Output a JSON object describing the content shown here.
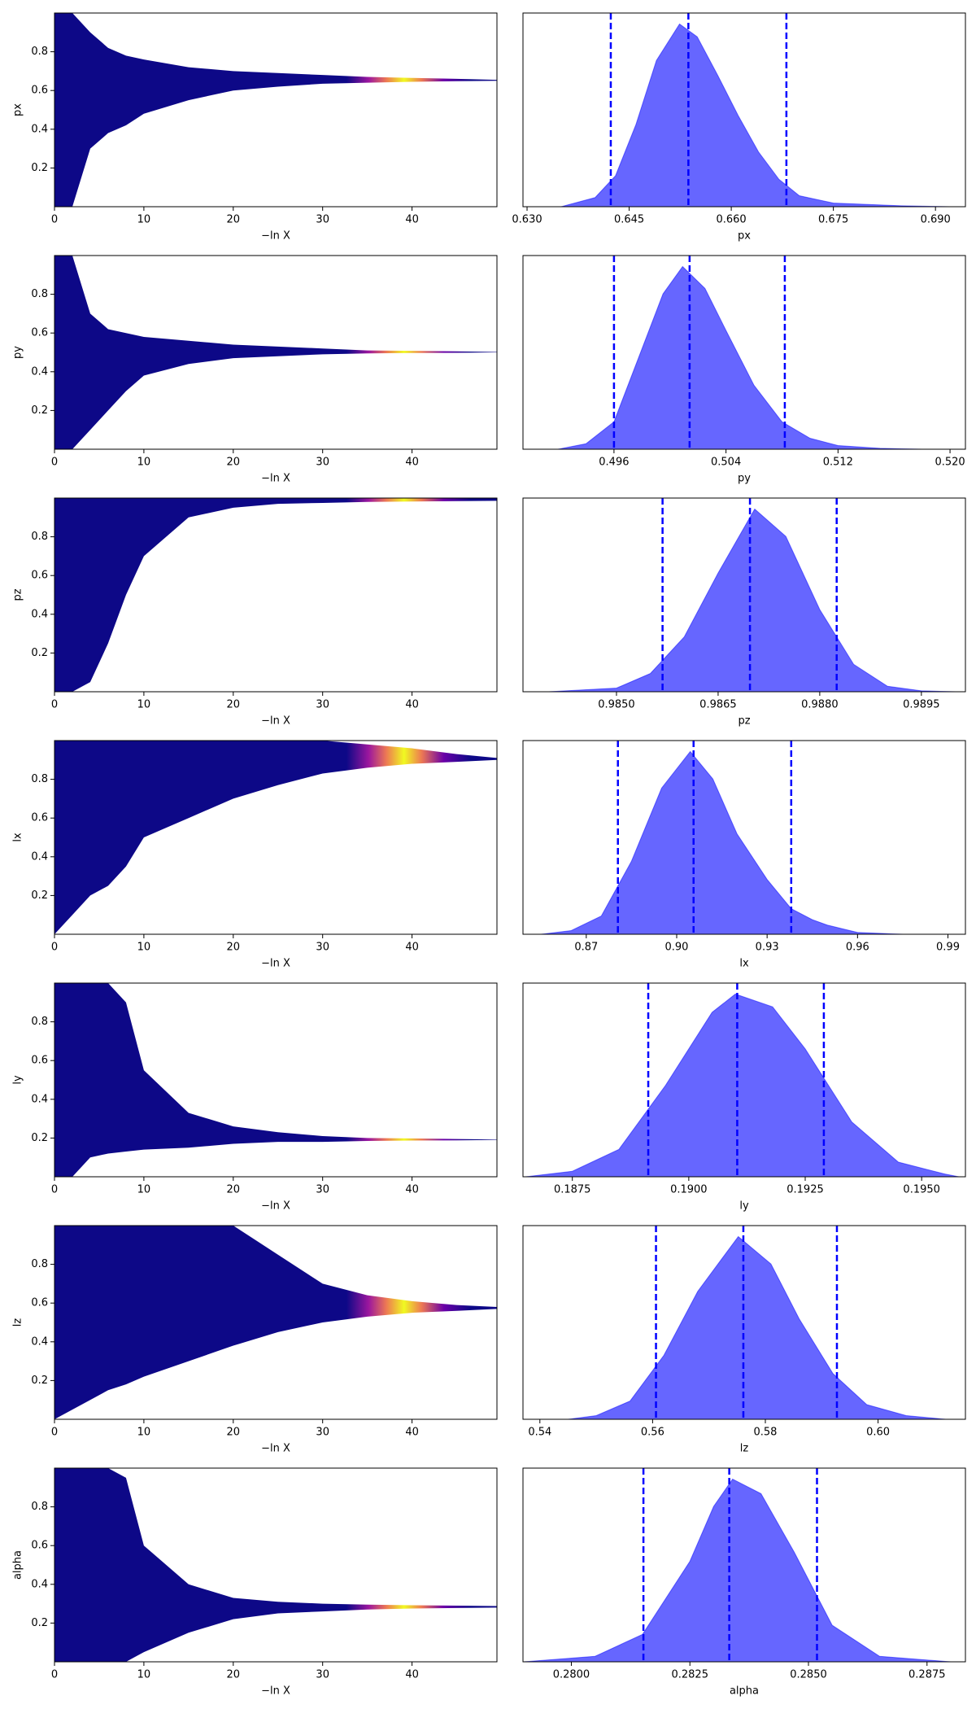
{
  "chart_data": [
    {
      "type": "band",
      "ylabel": "px",
      "xlabel": "−ln X",
      "color": "#0d0887",
      "x": [
        0,
        2,
        4,
        6,
        8,
        10,
        15,
        20,
        25,
        30,
        35,
        40,
        45,
        49.5
      ],
      "lower": [
        0,
        0,
        0.3,
        0.38,
        0.42,
        0.48,
        0.55,
        0.6,
        0.62,
        0.635,
        0.64,
        0.645,
        0.648,
        0.65
      ],
      "upper": [
        1,
        1,
        0.9,
        0.82,
        0.78,
        0.76,
        0.72,
        0.7,
        0.69,
        0.68,
        0.67,
        0.665,
        0.66,
        0.655
      ],
      "xlim": [
        0,
        49.5
      ],
      "ylim": [
        0,
        1
      ],
      "xticks": [
        0,
        10,
        20,
        30,
        40
      ],
      "yticks": [
        0.2,
        0.4,
        0.6,
        0.8
      ]
    },
    {
      "type": "area",
      "xlabel": "px",
      "color": "#6666ff",
      "line_color": "#0000ff",
      "x": [
        0.635,
        0.64,
        0.643,
        0.646,
        0.649,
        0.6524,
        0.655,
        0.658,
        0.661,
        0.664,
        0.667,
        0.67,
        0.675,
        0.685,
        0.692
      ],
      "values": [
        0,
        0.05,
        0.17,
        0.45,
        0.8,
        1,
        0.93,
        0.72,
        0.5,
        0.3,
        0.15,
        0.06,
        0.02,
        0.005,
        0
      ],
      "quantiles": [
        0.6423,
        0.6537,
        0.6681
      ],
      "xlim": [
        0.6294,
        0.6944
      ],
      "ylim": [
        0,
        1.06
      ],
      "xticks": [
        {
          "value": 0.63,
          "label": "0.630"
        },
        0.645,
        {
          "value": 0.66,
          "label": "0.660"
        },
        0.675,
        {
          "value": 0.69,
          "label": "0.690"
        }
      ]
    },
    {
      "type": "band",
      "ylabel": "py",
      "xlabel": "−ln X",
      "color": "#0d0887",
      "x": [
        0,
        2,
        4,
        6,
        8,
        10,
        15,
        20,
        25,
        30,
        35,
        40,
        45,
        49.5
      ],
      "lower": [
        0,
        0,
        0.1,
        0.2,
        0.3,
        0.38,
        0.44,
        0.47,
        0.48,
        0.49,
        0.495,
        0.497,
        0.498,
        0.5
      ],
      "upper": [
        1,
        1,
        0.7,
        0.62,
        0.6,
        0.58,
        0.56,
        0.54,
        0.53,
        0.52,
        0.51,
        0.508,
        0.505,
        0.502
      ],
      "xlim": [
        0,
        49.5
      ],
      "ylim": [
        0,
        1
      ],
      "xticks": [
        0,
        10,
        20,
        30,
        40
      ],
      "yticks": [
        0.2,
        0.4,
        0.6,
        0.8
      ]
    },
    {
      "type": "area",
      "xlabel": "py",
      "color": "#6666ff",
      "line_color": "#0000ff",
      "x": [
        0.492,
        0.494,
        0.496,
        0.498,
        0.4995,
        0.5009,
        0.5025,
        0.504,
        0.506,
        0.508,
        0.51,
        0.512,
        0.515,
        0.518
      ],
      "values": [
        0,
        0.03,
        0.15,
        0.55,
        0.85,
        1,
        0.88,
        0.65,
        0.35,
        0.15,
        0.06,
        0.02,
        0.005,
        0
      ],
      "quantiles": [
        0.496,
        0.5014,
        0.5082
      ],
      "xlim": [
        0.4895,
        0.5211
      ],
      "ylim": [
        0,
        1.06
      ],
      "xticks": [
        0.496,
        0.504,
        0.512,
        {
          "value": 0.52,
          "label": "0.520"
        }
      ]
    },
    {
      "type": "band",
      "ylabel": "pz",
      "xlabel": "−ln X",
      "color": "#0d0887",
      "x": [
        0,
        2,
        4,
        6,
        8,
        10,
        15,
        20,
        25,
        30,
        35,
        40,
        45,
        49.5
      ],
      "lower": [
        0,
        0,
        0.05,
        0.25,
        0.5,
        0.7,
        0.9,
        0.95,
        0.97,
        0.975,
        0.98,
        0.982,
        0.984,
        0.986
      ],
      "upper": [
        1,
        1,
        1,
        1,
        1,
        1,
        1,
        1,
        1,
        1,
        1,
        1,
        1,
        1
      ],
      "xlim": [
        0,
        49.5
      ],
      "ylim": [
        0,
        1
      ],
      "xticks": [
        0,
        10,
        20,
        30,
        40
      ],
      "yticks": [
        0.2,
        0.4,
        0.6,
        0.8
      ]
    },
    {
      "type": "area",
      "xlabel": "pz",
      "color": "#6666ff",
      "line_color": "#0000ff",
      "x": [
        0.984,
        0.985,
        0.9855,
        0.986,
        0.9865,
        0.98704,
        0.9875,
        0.988,
        0.9885,
        0.989,
        0.9895,
        0.99
      ],
      "values": [
        0,
        0.02,
        0.1,
        0.3,
        0.65,
        1,
        0.85,
        0.45,
        0.15,
        0.03,
        0.005,
        0
      ],
      "quantiles": [
        0.98568,
        0.98697,
        0.98825
      ],
      "xlim": [
        0.98362,
        0.99015
      ],
      "ylim": [
        0,
        1.06
      ],
      "xticks": [
        {
          "value": 0.985,
          "label": "0.9850"
        },
        0.9865,
        {
          "value": 0.988,
          "label": "0.9880"
        },
        0.9895
      ]
    },
    {
      "type": "band",
      "ylabel": "lx",
      "xlabel": "−ln X",
      "color": "#0d0887",
      "x": [
        0,
        2,
        4,
        6,
        8,
        10,
        15,
        20,
        25,
        30,
        35,
        40,
        45,
        49.5
      ],
      "lower": [
        0,
        0.1,
        0.2,
        0.25,
        0.35,
        0.5,
        0.6,
        0.7,
        0.77,
        0.83,
        0.86,
        0.88,
        0.89,
        0.9
      ],
      "upper": [
        1,
        1,
        1,
        1,
        1,
        1,
        1,
        1,
        1,
        1,
        0.98,
        0.96,
        0.93,
        0.91
      ],
      "xlim": [
        0,
        49.5
      ],
      "ylim": [
        0,
        1
      ],
      "xticks": [
        0,
        10,
        20,
        30,
        40
      ],
      "yticks": [
        0.2,
        0.4,
        0.6,
        0.8
      ]
    },
    {
      "type": "area",
      "xlabel": "lx",
      "color": "#6666ff",
      "line_color": "#0000ff",
      "x": [
        0.855,
        0.865,
        0.875,
        0.885,
        0.895,
        0.9045,
        0.912,
        0.92,
        0.93,
        0.938,
        0.945,
        0.95,
        0.96,
        0.975
      ],
      "values": [
        0,
        0.02,
        0.1,
        0.4,
        0.8,
        1,
        0.85,
        0.55,
        0.3,
        0.14,
        0.08,
        0.05,
        0.01,
        0
      ],
      "quantiles": [
        0.8805,
        0.9056,
        0.938
      ],
      "xlim": [
        0.849,
        0.9958
      ],
      "ylim": [
        0,
        1.06
      ],
      "xticks": [
        0.87,
        {
          "value": 0.9,
          "label": "0.90"
        },
        0.93,
        0.96,
        0.99
      ]
    },
    {
      "type": "band",
      "ylabel": "ly",
      "xlabel": "−ln X",
      "color": "#0d0887",
      "x": [
        0,
        2,
        4,
        6,
        8,
        10,
        15,
        20,
        25,
        30,
        35,
        40,
        45,
        49.5
      ],
      "lower": [
        0,
        0,
        0.1,
        0.12,
        0.13,
        0.14,
        0.15,
        0.17,
        0.18,
        0.18,
        0.185,
        0.187,
        0.188,
        0.19
      ],
      "upper": [
        1,
        1,
        1,
        1,
        0.9,
        0.55,
        0.33,
        0.26,
        0.23,
        0.21,
        0.2,
        0.198,
        0.195,
        0.192
      ],
      "xlim": [
        0,
        49.5
      ],
      "ylim": [
        0,
        1
      ],
      "xticks": [
        0,
        10,
        20,
        30,
        40
      ],
      "yticks": [
        0.2,
        0.4,
        0.6,
        0.8
      ]
    },
    {
      "type": "area",
      "xlabel": "ly",
      "color": "#6666ff",
      "line_color": "#0000ff",
      "x": [
        0.1865,
        0.1875,
        0.1885,
        0.1895,
        0.1905,
        0.191,
        0.1918,
        0.1925,
        0.1935,
        0.1945,
        0.1955,
        0.1958
      ],
      "values": [
        0,
        0.03,
        0.15,
        0.5,
        0.9,
        1,
        0.93,
        0.7,
        0.3,
        0.08,
        0.015,
        0
      ],
      "quantiles": [
        0.18913,
        0.19104,
        0.1929
      ],
      "xlim": [
        0.18644,
        0.19594
      ],
      "ylim": [
        0,
        1.06
      ],
      "xticks": [
        0.1875,
        {
          "value": 0.19,
          "label": "0.1900"
        },
        0.1925,
        {
          "value": 0.195,
          "label": "0.1950"
        }
      ]
    },
    {
      "type": "band",
      "ylabel": "lz",
      "xlabel": "−ln X",
      "color": "#0d0887",
      "x": [
        0,
        2,
        4,
        6,
        8,
        10,
        15,
        20,
        25,
        30,
        35,
        40,
        45,
        49.5
      ],
      "lower": [
        0,
        0.05,
        0.1,
        0.15,
        0.18,
        0.22,
        0.3,
        0.38,
        0.45,
        0.5,
        0.53,
        0.55,
        0.56,
        0.57
      ],
      "upper": [
        1,
        1,
        1,
        1,
        1,
        1,
        1,
        1,
        0.85,
        0.7,
        0.64,
        0.61,
        0.59,
        0.58
      ],
      "xlim": [
        0,
        49.5
      ],
      "ylim": [
        0,
        1
      ],
      "xticks": [
        0,
        10,
        20,
        30,
        40
      ],
      "yticks": [
        0.2,
        0.4,
        0.6,
        0.8
      ]
    },
    {
      "type": "area",
      "xlabel": "lz",
      "color": "#6666ff",
      "line_color": "#0000ff",
      "x": [
        0.545,
        0.55,
        0.556,
        0.562,
        0.568,
        0.5752,
        0.581,
        0.586,
        0.592,
        0.598,
        0.605,
        0.612
      ],
      "values": [
        0,
        0.02,
        0.1,
        0.35,
        0.7,
        1,
        0.85,
        0.55,
        0.25,
        0.08,
        0.02,
        0
      ],
      "quantiles": [
        0.5606,
        0.5761,
        0.5927
      ],
      "xlim": [
        0.537,
        0.6155
      ],
      "ylim": [
        0,
        1.06
      ],
      "xticks": [
        0.54,
        0.56,
        0.58,
        {
          "value": 0.6,
          "label": "0.60"
        }
      ]
    },
    {
      "type": "band",
      "ylabel": "alpha",
      "xlabel": "−ln X",
      "color": "#0d0887",
      "x": [
        0,
        2,
        4,
        6,
        8,
        10,
        15,
        20,
        25,
        30,
        35,
        40,
        45,
        49.5
      ],
      "lower": [
        0,
        0,
        0,
        0,
        0,
        0.05,
        0.15,
        0.22,
        0.25,
        0.26,
        0.27,
        0.275,
        0.278,
        0.28
      ],
      "upper": [
        1,
        1,
        1,
        1,
        0.95,
        0.6,
        0.4,
        0.33,
        0.31,
        0.3,
        0.295,
        0.292,
        0.29,
        0.288
      ],
      "xlim": [
        0,
        49.5
      ],
      "ylim": [
        0,
        1
      ],
      "xticks": [
        0,
        10,
        20,
        30,
        40
      ],
      "yticks": [
        0.2,
        0.4,
        0.6,
        0.8
      ]
    },
    {
      "type": "area",
      "xlabel": "alpha",
      "color": "#6666ff",
      "line_color": "#0000ff",
      "x": [
        0.279,
        0.2805,
        0.2815,
        0.2825,
        0.283,
        0.2834,
        0.284,
        0.2847,
        0.2855,
        0.2865,
        0.288
      ],
      "values": [
        0,
        0.03,
        0.15,
        0.55,
        0.85,
        1,
        0.92,
        0.6,
        0.2,
        0.03,
        0
      ],
      "quantiles": [
        0.28152,
        0.28333,
        0.28518
      ],
      "xlim": [
        0.27898,
        0.28831
      ],
      "ylim": [
        0,
        1.06
      ],
      "xticks": [
        {
          "value": 0.28,
          "label": "0.2800"
        },
        0.2825,
        {
          "value": 0.285,
          "label": "0.2850"
        },
        0.2875
      ]
    }
  ]
}
